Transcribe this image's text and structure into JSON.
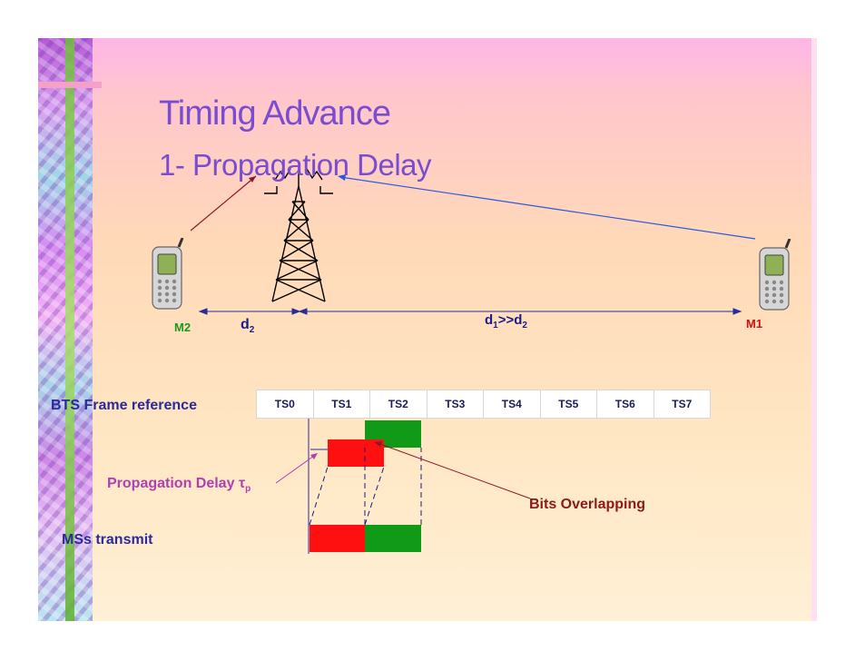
{
  "title": "Timing Advance",
  "subtitle": "1- Propagation Delay",
  "labels": {
    "bts_frame_reference": "BTS Frame reference",
    "ms_transmit": "MSs transmit",
    "propagation_delay": "Propagation Delay",
    "tau_symbol": "τ",
    "tau_sub": "p",
    "bits_overlapping": "Bits Overlapping",
    "m2": "M2",
    "m1": "M1",
    "d2_main": "d",
    "d2_sub": "2",
    "d1d2_a": "d",
    "d1d2_a_sub": "1",
    "d1d2_rel": ">>d",
    "d1d2_b_sub": "2"
  },
  "timeslots": [
    "TS0",
    "TS1",
    "TS2",
    "TS3",
    "TS4",
    "TS5",
    "TS6",
    "TS7"
  ],
  "colors": {
    "m2_burst": "#ff1010",
    "m1_burst": "#109a18",
    "title": "#7a4ccf",
    "link_line": "#2a5ad8",
    "pointer_line": "#8a1a2a"
  },
  "icons": [
    "bts-tower-icon",
    "mobile-phone-icon"
  ]
}
